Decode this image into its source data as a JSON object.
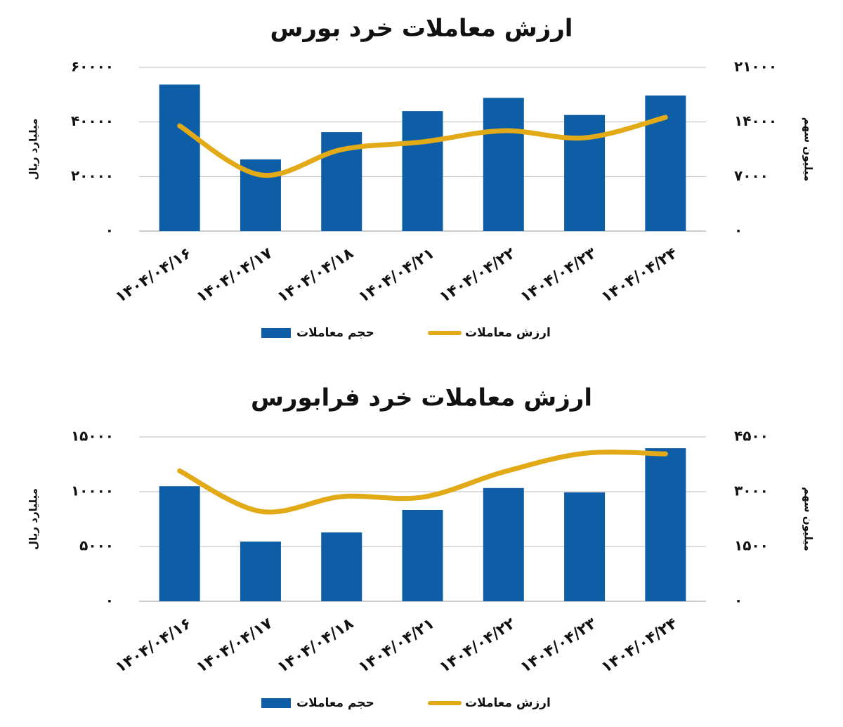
{
  "chart_data": [
    {
      "type": "bar",
      "title": "ارزش معاملات خرد بورس",
      "y_label": "میلیارد ریال",
      "y2_label": "میلیون سهم",
      "categories": [
        "۱۴۰۴/۰۴/۱۶",
        "۱۴۰۴/۰۴/۱۷",
        "۱۴۰۴/۰۴/۱۸",
        "۱۴۰۴/۰۴/۲۱",
        "۱۴۰۴/۰۴/۲۲",
        "۱۴۰۴/۰۴/۲۳",
        "۱۴۰۴/۰۴/۲۴"
      ],
      "series": [
        {
          "name": "حجم معاملات",
          "type": "bar",
          "axis": "y2",
          "color": "#0d5ea6",
          "values": [
            18800,
            9200,
            12700,
            15400,
            17100,
            14900,
            17400
          ]
        },
        {
          "name": "ارزش معاملات",
          "type": "line",
          "axis": "y",
          "color": "#e2aa17",
          "values": [
            38600,
            20600,
            29900,
            32700,
            36800,
            34200,
            41700
          ]
        }
      ],
      "ylim": [
        0,
        60000
      ],
      "yticks": [
        {
          "value": 0,
          "label": "۰"
        },
        {
          "value": 20000,
          "label": "۲۰۰۰۰"
        },
        {
          "value": 40000,
          "label": "۴۰۰۰۰"
        },
        {
          "value": 60000,
          "label": "۶۰۰۰۰"
        }
      ],
      "y2lim": [
        0,
        21000
      ],
      "y2ticks": [
        {
          "value": 0,
          "label": "۰"
        },
        {
          "value": 7000,
          "label": "۷۰۰۰"
        },
        {
          "value": 14000,
          "label": "۱۴۰۰۰"
        },
        {
          "value": 21000,
          "label": "۲۱۰۰۰"
        }
      ],
      "grid": true
    },
    {
      "type": "bar",
      "title": "ارزش معاملات خرد فرابورس",
      "y_label": "میلیارد ریال",
      "y2_label": "میلیون سهم",
      "categories": [
        "۱۴۰۴/۰۴/۱۶",
        "۱۴۰۴/۰۴/۱۷",
        "۱۴۰۴/۰۴/۱۸",
        "۱۴۰۴/۰۴/۲۱",
        "۱۴۰۴/۰۴/۲۲",
        "۱۴۰۴/۰۴/۲۳",
        "۱۴۰۴/۰۴/۲۴"
      ],
      "series": [
        {
          "name": "حجم معاملات",
          "type": "bar",
          "axis": "y2",
          "color": "#0d5ea6",
          "values": [
            3150,
            1635,
            1885,
            2500,
            3100,
            2980,
            4190
          ]
        },
        {
          "name": "ارزش معاملات",
          "type": "line",
          "axis": "y",
          "color": "#e2aa17",
          "values": [
            11900,
            8200,
            9550,
            9500,
            11800,
            13500,
            13450
          ]
        }
      ],
      "ylim": [
        0,
        15000
      ],
      "yticks": [
        {
          "value": 0,
          "label": "۰"
        },
        {
          "value": 5000,
          "label": "۵۰۰۰"
        },
        {
          "value": 10000,
          "label": "۱۰۰۰۰"
        },
        {
          "value": 15000,
          "label": "۱۵۰۰۰"
        }
      ],
      "y2lim": [
        0,
        4500
      ],
      "y2ticks": [
        {
          "value": 0,
          "label": "۰"
        },
        {
          "value": 1500,
          "label": "۱۵۰۰"
        },
        {
          "value": 3000,
          "label": "۳۰۰۰"
        },
        {
          "value": 4500,
          "label": "۴۵۰۰"
        }
      ],
      "grid": true
    }
  ]
}
